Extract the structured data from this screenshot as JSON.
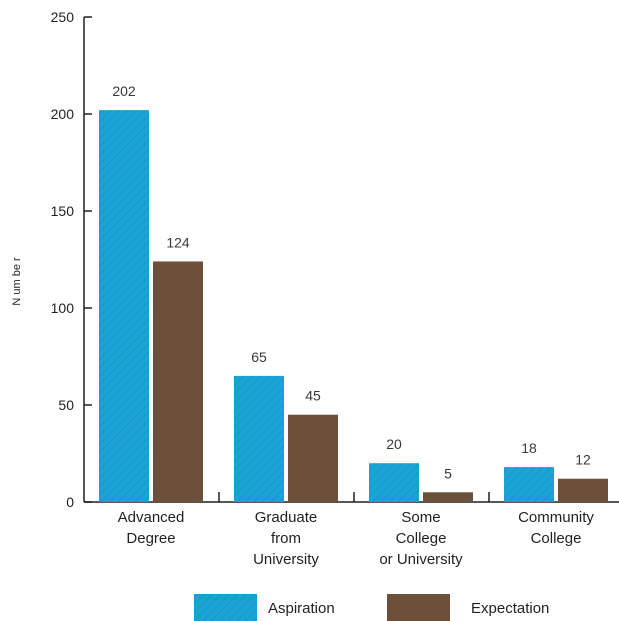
{
  "chart_data": {
    "type": "bar",
    "ylabel": "N um be r",
    "xlabel": "",
    "title": "",
    "ylim": [
      0,
      250
    ],
    "yticks": [
      0,
      50,
      100,
      150,
      200,
      250
    ],
    "categories": [
      [
        "Advanced",
        "Degree"
      ],
      [
        "Graduate",
        "from",
        "University"
      ],
      [
        "Some",
        "College",
        "or University"
      ],
      [
        "Community",
        "College"
      ]
    ],
    "series": [
      {
        "name": "Aspiration",
        "values": [
          202,
          65,
          20,
          18
        ],
        "color": "#1aa3d4",
        "pattern": "diagonal-hatch"
      },
      {
        "name": "Expectation",
        "values": [
          124,
          45,
          5,
          12
        ],
        "color": "#6d5039",
        "pattern": "solid"
      }
    ],
    "legend_position": "bottom",
    "grid": false
  }
}
